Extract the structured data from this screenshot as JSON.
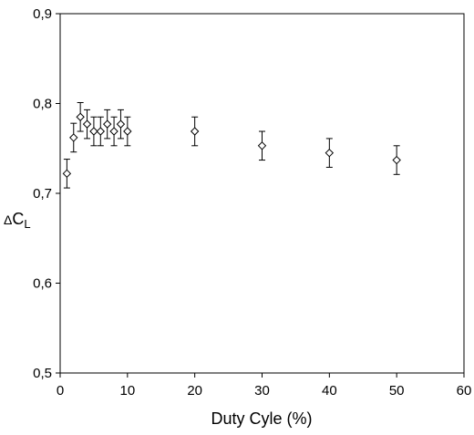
{
  "chart_data": {
    "type": "scatter",
    "title": "",
    "xlabel": "Duty Cyle (%)",
    "ylabel_prefix": "Δ",
    "ylabel_main": "C",
    "ylabel_sub": "L",
    "xlim": [
      0,
      60
    ],
    "ylim": [
      0.5,
      0.9
    ],
    "xticks": [
      0,
      10,
      20,
      30,
      40,
      50,
      60
    ],
    "xtick_labels": [
      "0",
      "10",
      "20",
      "30",
      "40",
      "50",
      "60"
    ],
    "yticks": [
      0.5,
      0.6,
      0.7,
      0.8,
      0.9
    ],
    "ytick_labels": [
      "0,5",
      "0,6",
      "0,7",
      "0,8",
      "0,9"
    ],
    "grid": false,
    "marker": "open-diamond",
    "series": [
      {
        "x": [
          1,
          2,
          3,
          4,
          5,
          6,
          7,
          8,
          9,
          10,
          20,
          30,
          40,
          50
        ],
        "y": [
          0.722,
          0.762,
          0.785,
          0.777,
          0.769,
          0.769,
          0.777,
          0.769,
          0.777,
          0.769,
          0.769,
          0.753,
          0.745,
          0.737
        ],
        "error": [
          0.016,
          0.016,
          0.016,
          0.016,
          0.016,
          0.016,
          0.016,
          0.016,
          0.016,
          0.016,
          0.016,
          0.016,
          0.016,
          0.016
        ]
      }
    ]
  }
}
